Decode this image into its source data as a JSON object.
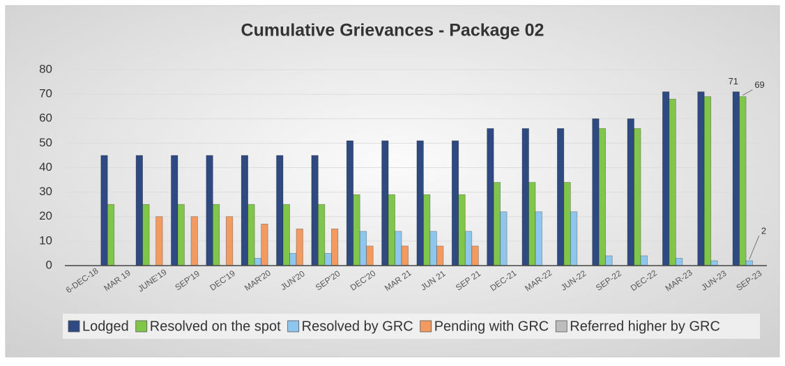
{
  "chart_data": {
    "type": "bar",
    "title": "Cumulative Grievances - Package 02",
    "categories": [
      "6-DEC-18",
      "MAR 19",
      "JUNE'19",
      "SEP'19",
      "DEC'19",
      "MAR'20",
      "JUN'20",
      "SEP'20",
      "DEC'20",
      "MAR 21",
      "JUN 21",
      "SEP 21",
      "DEC-21",
      "MAR-22",
      "JUN-22",
      "SEP-22",
      "DEC-22",
      "MAR-23",
      "JUN-23",
      "SEP-23"
    ],
    "series": [
      {
        "name": "Lodged",
        "color": "#2e4a80",
        "values": [
          0,
          45,
          45,
          45,
          45,
          45,
          45,
          45,
          51,
          51,
          51,
          51,
          56,
          56,
          56,
          60,
          60,
          71,
          71,
          71
        ],
        "value_labels": [
          null,
          null,
          null,
          null,
          null,
          null,
          null,
          null,
          null,
          null,
          null,
          null,
          null,
          null,
          null,
          null,
          null,
          null,
          null,
          "71"
        ]
      },
      {
        "name": "Resolved on the spot",
        "color": "#80c64a",
        "values": [
          0,
          25,
          25,
          25,
          25,
          25,
          25,
          25,
          29,
          29,
          29,
          29,
          34,
          34,
          34,
          56,
          56,
          68,
          69,
          69
        ],
        "value_labels": [
          null,
          null,
          null,
          null,
          null,
          null,
          null,
          null,
          null,
          null,
          null,
          null,
          null,
          null,
          null,
          null,
          null,
          null,
          null,
          "69"
        ]
      },
      {
        "name": "Resolved by GRC",
        "color": "#8ec6ee",
        "values": [
          0,
          0,
          0,
          0,
          0,
          3,
          5,
          5,
          14,
          14,
          14,
          14,
          22,
          22,
          22,
          4,
          4,
          3,
          2,
          2
        ],
        "value_labels": [
          null,
          null,
          null,
          null,
          null,
          null,
          null,
          null,
          null,
          null,
          null,
          null,
          null,
          null,
          null,
          null,
          null,
          null,
          null,
          "2"
        ]
      },
      {
        "name": "Pending with GRC",
        "color": "#f39a60",
        "values": [
          0,
          0,
          20,
          20,
          20,
          17,
          15,
          15,
          8,
          8,
          8,
          8,
          0,
          0,
          0,
          0,
          0,
          0,
          0,
          0
        ]
      },
      {
        "name": "Referred higher by GRC",
        "color": "#bdbdbd",
        "values": [
          0,
          0,
          0,
          0,
          0,
          0,
          0,
          0,
          0,
          0,
          0,
          0,
          0,
          0,
          0,
          0,
          0,
          0,
          0,
          0
        ]
      }
    ],
    "ylim": [
      0,
      80
    ],
    "yticks": [
      0,
      10,
      20,
      30,
      40,
      50,
      60,
      70,
      80
    ],
    "grid": true,
    "legend": "bottom"
  }
}
